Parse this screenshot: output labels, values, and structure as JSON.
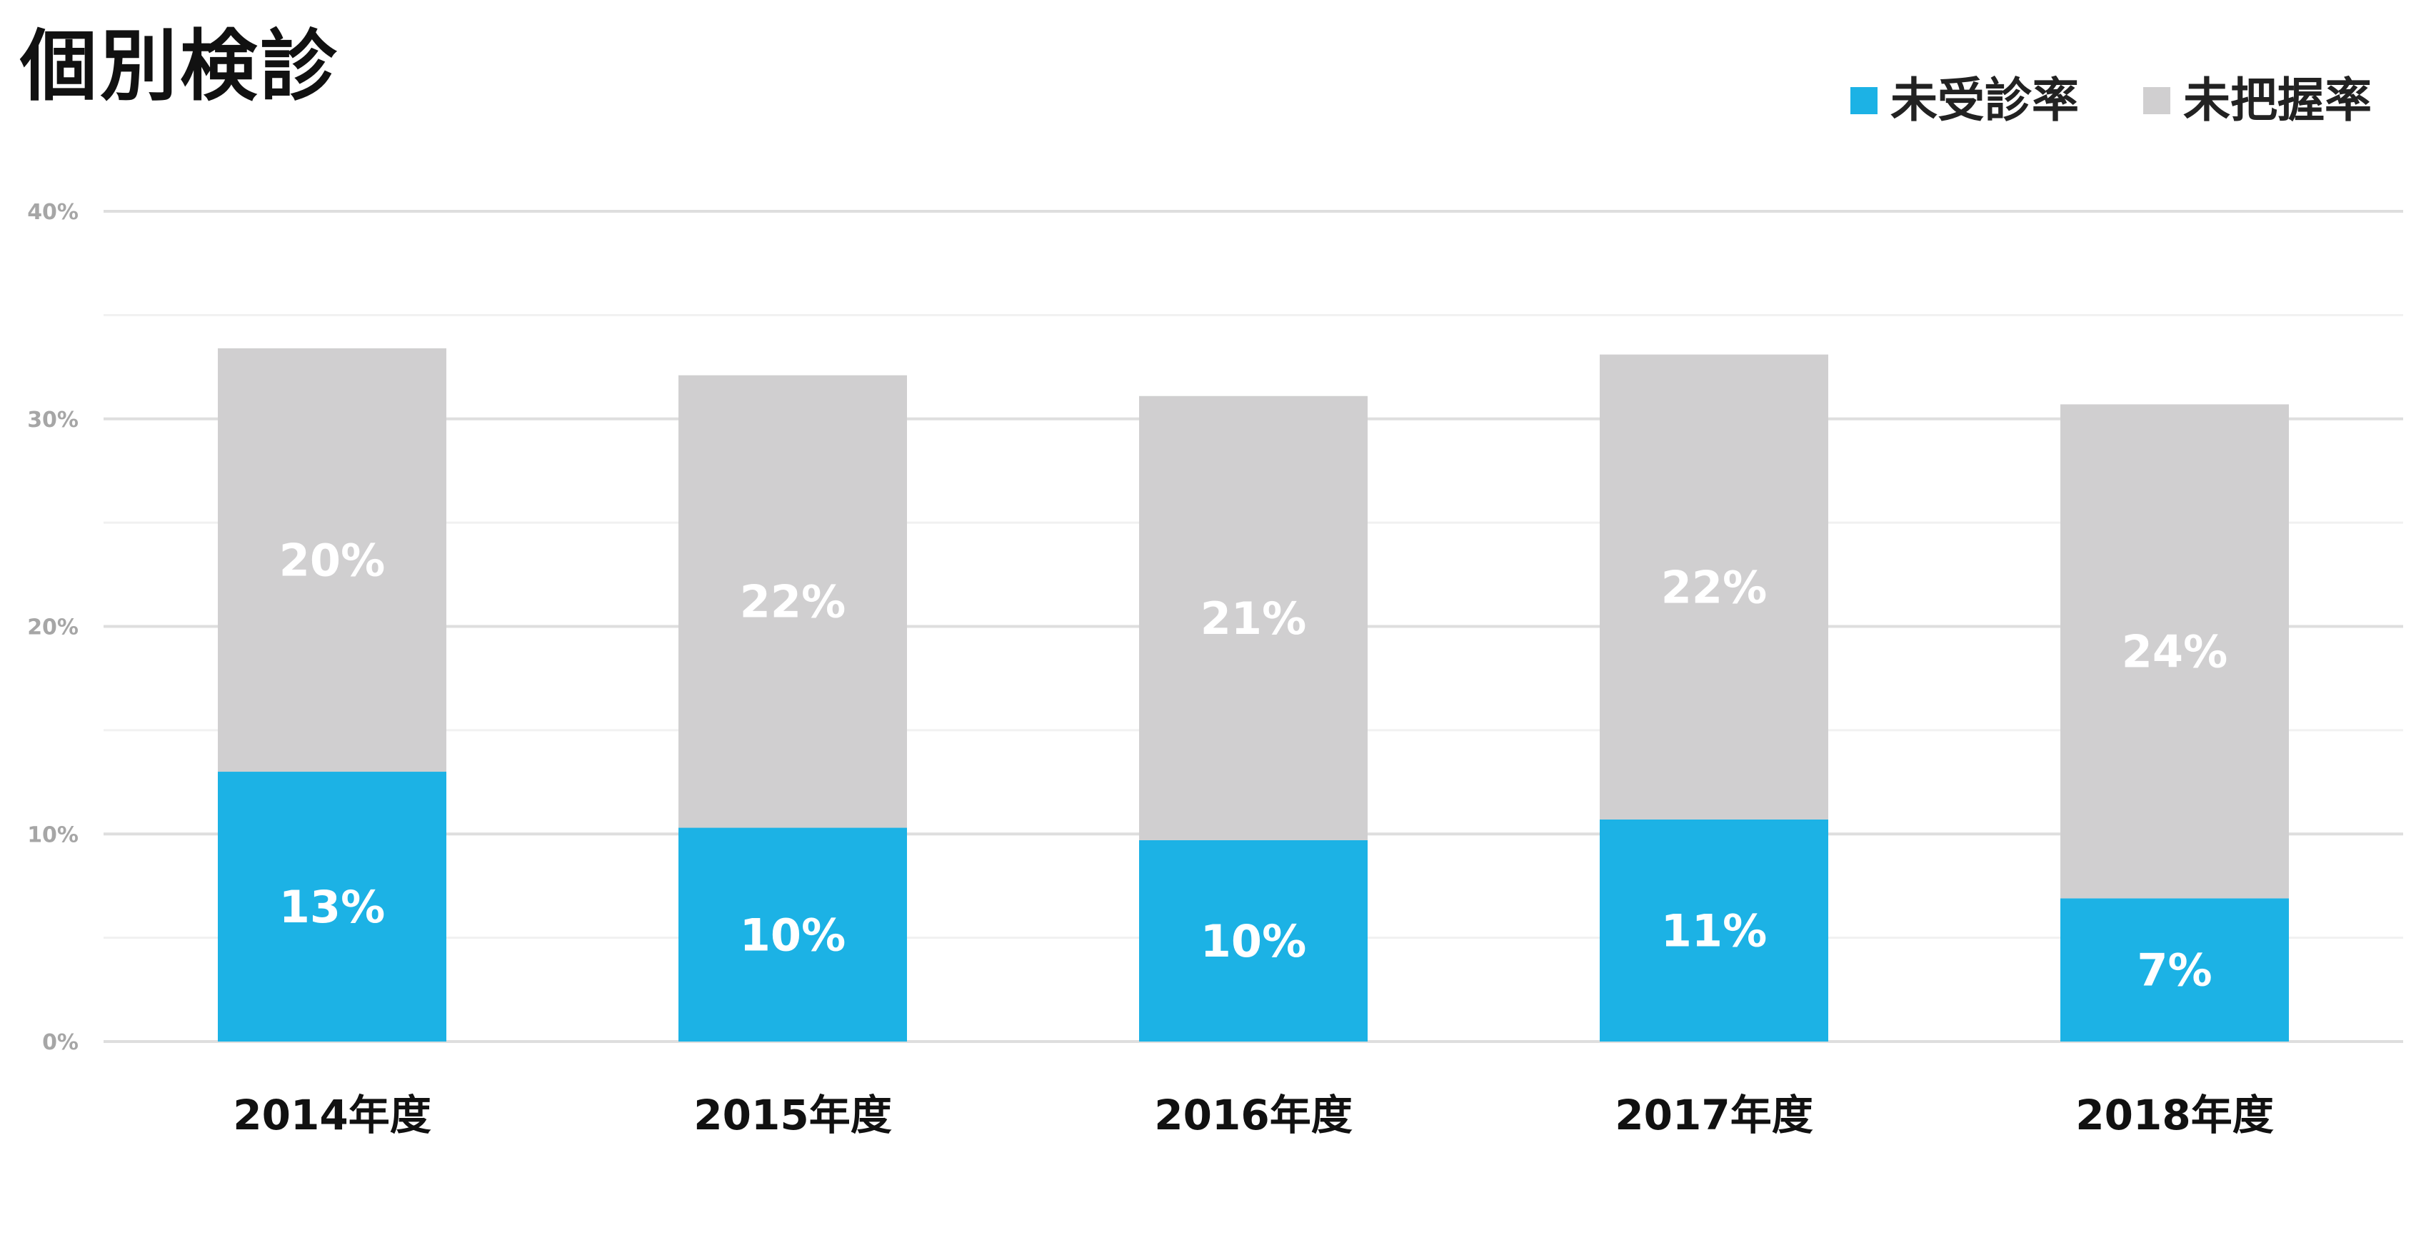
{
  "chart_data": {
    "type": "bar",
    "stacked": true,
    "title": "個別検診",
    "categories": [
      "2014年度",
      "2015年度",
      "2016年度",
      "2017年度",
      "2018年度"
    ],
    "series": [
      {
        "name": "未受診率",
        "color": "#1cb2e5",
        "values": [
          13,
          10.3,
          9.7,
          10.7,
          6.9
        ],
        "labels": [
          "13%",
          "10%",
          "10%",
          "11%",
          "7%"
        ]
      },
      {
        "name": "未把握率",
        "color": "#d0cfd0",
        "values": [
          20.4,
          21.8,
          21.4,
          22.4,
          23.8
        ],
        "labels": [
          "20%",
          "22%",
          "21%",
          "22%",
          "24%"
        ]
      }
    ],
    "ylim": [
      0,
      40
    ],
    "yticks": [
      "0%",
      "10%",
      "20%",
      "30%",
      "40%"
    ],
    "grid": true,
    "legend": "top-right",
    "xlabel": "",
    "ylabel": ""
  }
}
